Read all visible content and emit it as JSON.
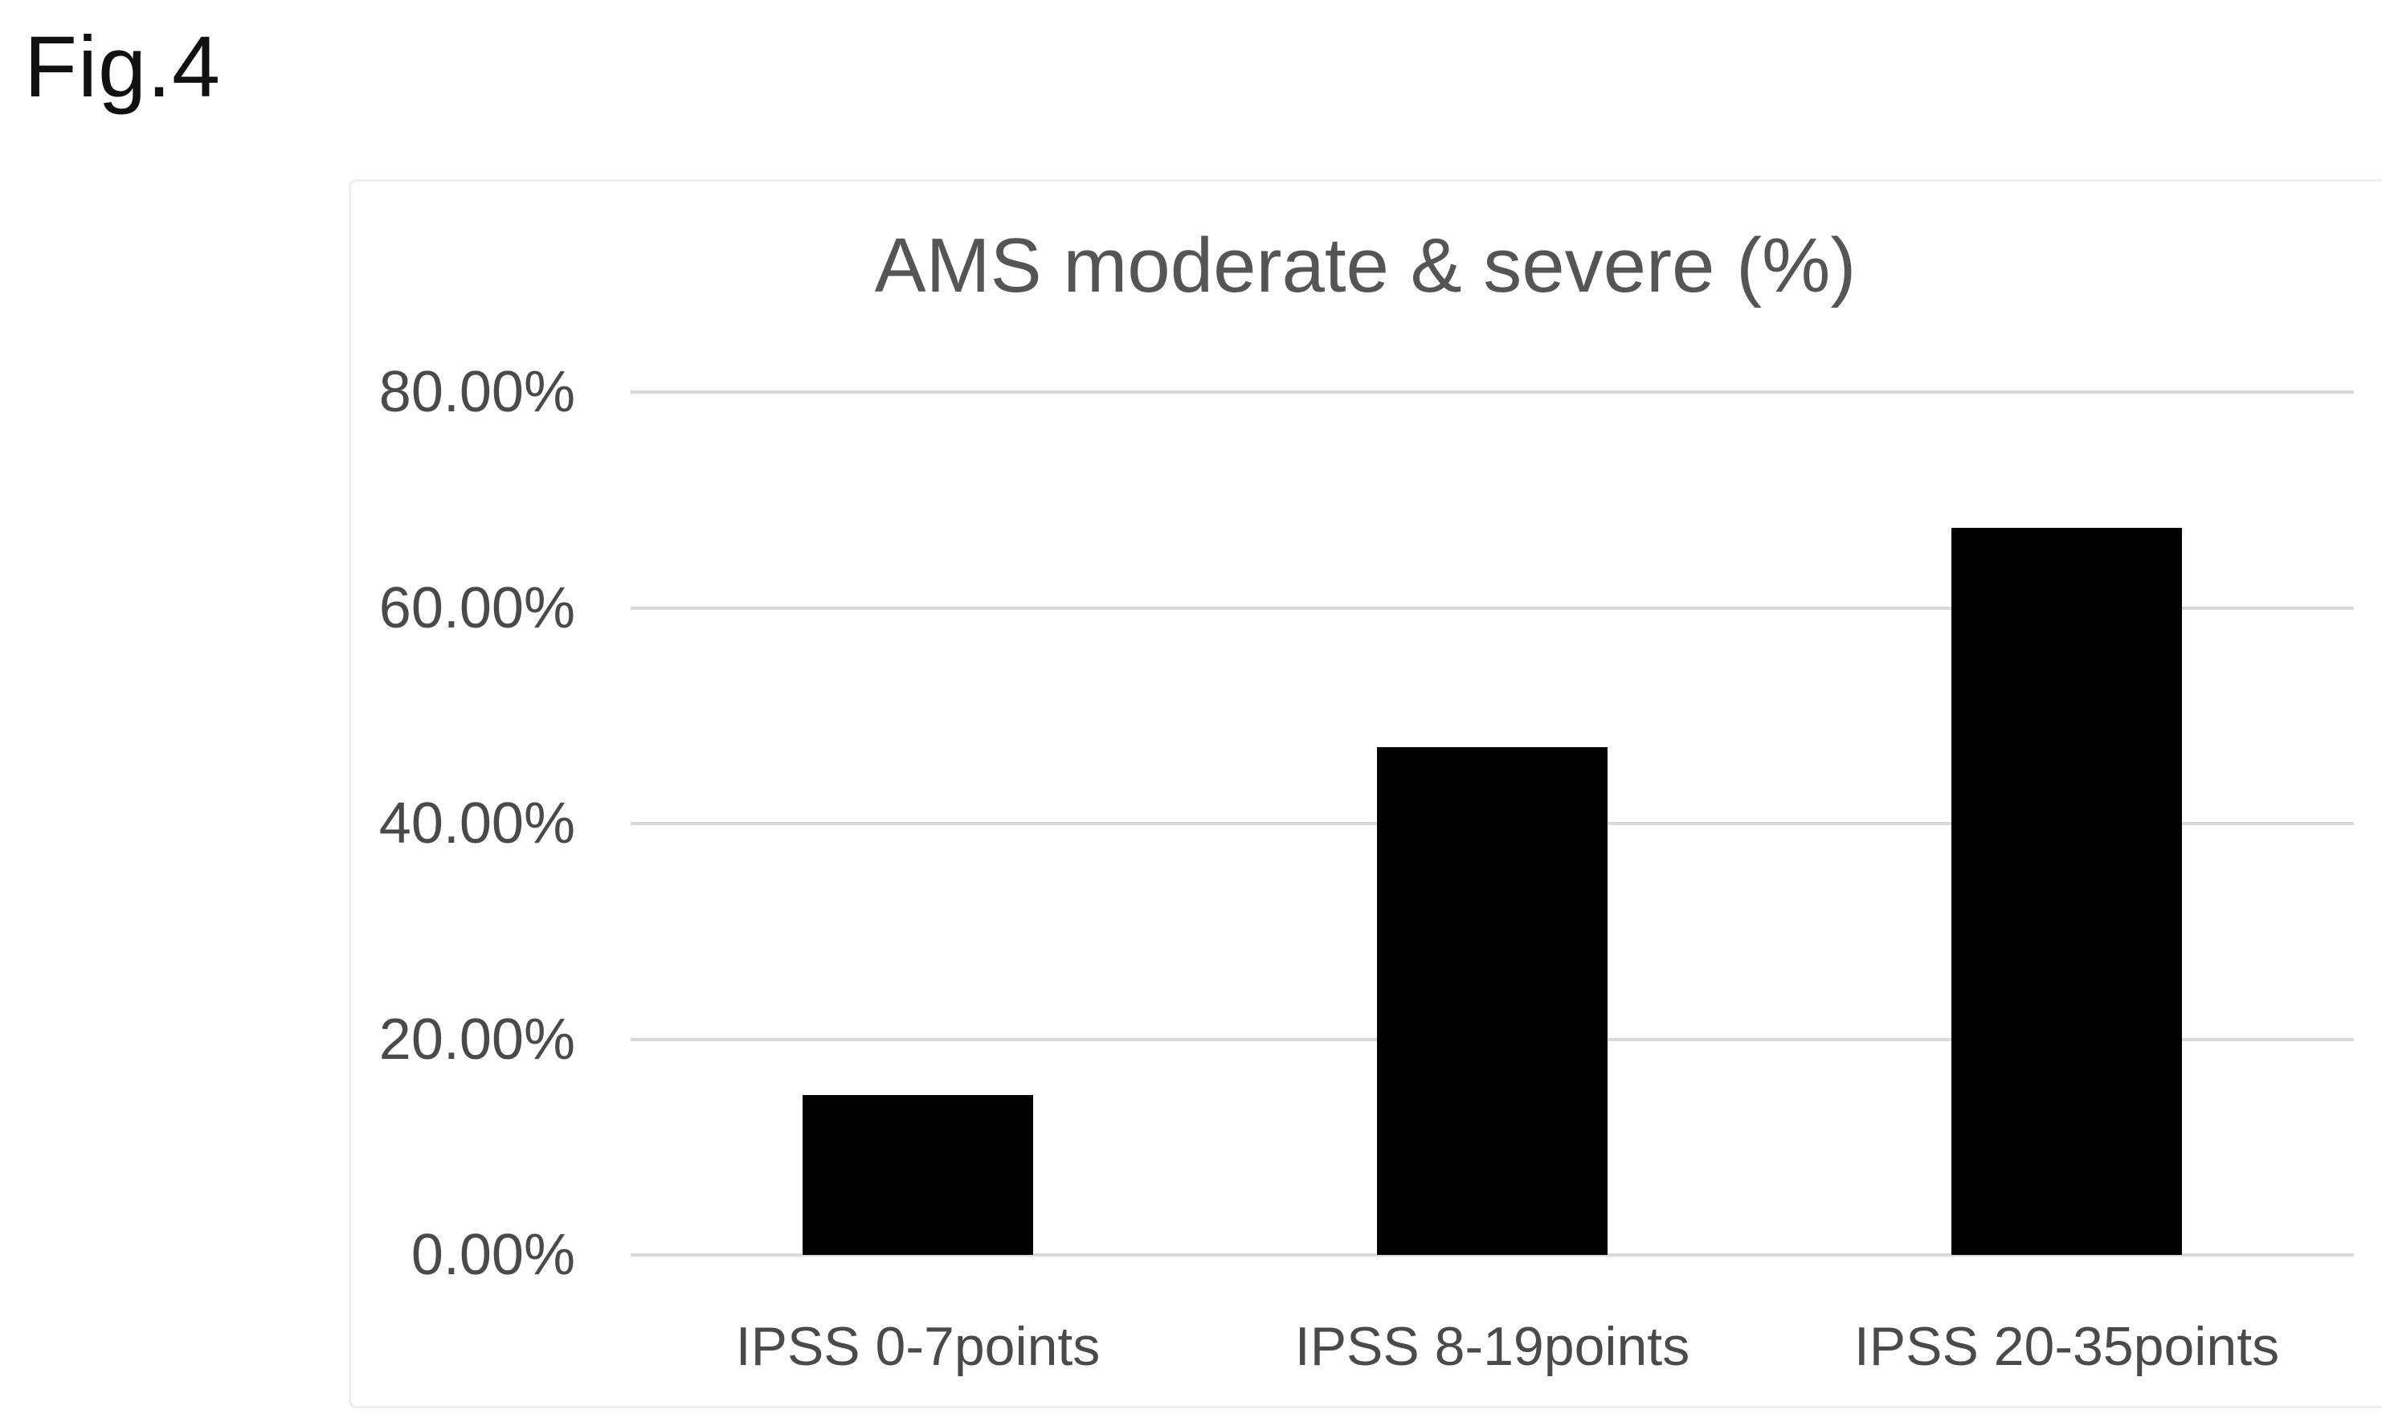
{
  "figure": {
    "label": "Fig.4"
  },
  "chart_data": {
    "type": "bar",
    "title": "AMS moderate & severe (%)",
    "categories": [
      "IPSS 0-7points",
      "IPSS 8-19points",
      "IPSS 20-35points"
    ],
    "values": [
      14.8,
      47.1,
      67.4
    ],
    "unit": "%",
    "xlabel": "",
    "ylabel": "",
    "ylim": [
      0,
      80
    ],
    "ytick_values": [
      0,
      20,
      40,
      60,
      80
    ],
    "ytick_labels": [
      "0.00%",
      "20.00%",
      "40.00%",
      "60.00%",
      "80.00%"
    ],
    "grid": true,
    "legend": false,
    "bar_color": "#000000",
    "gridline_color": "#d9d9d9",
    "title_color": "#555555",
    "axis_label_color": "#4a4a4a",
    "frame_color": "#eeeeee"
  }
}
